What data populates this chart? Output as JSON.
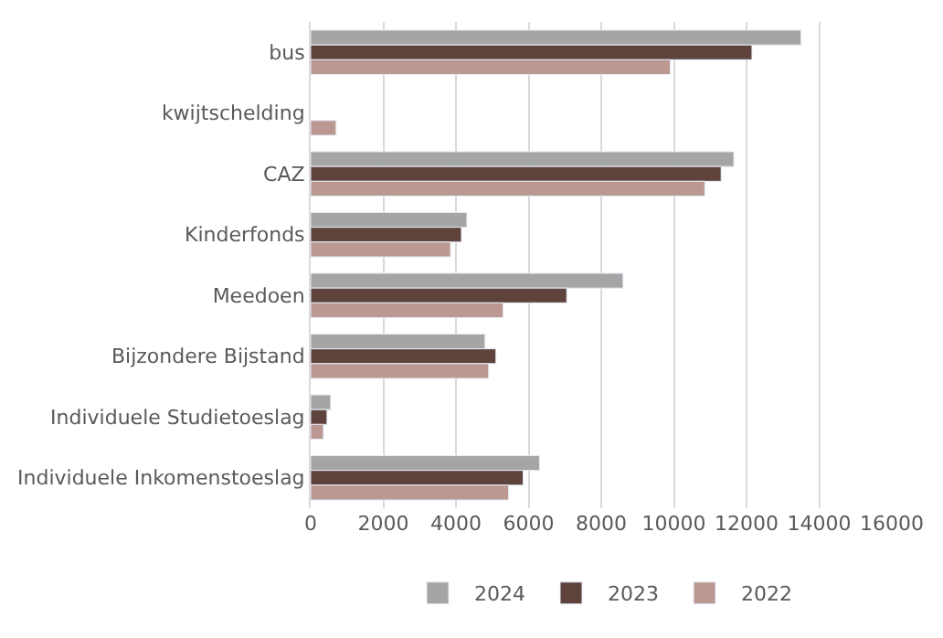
{
  "chart_data": {
    "type": "bar",
    "orientation": "horizontal",
    "categories": [
      "bus",
      "kwijtschelding",
      "CAZ",
      "Kinderfonds",
      "Meedoen",
      "Bijzondere Bijstand",
      "Individuele Studietoeslag",
      "Individuele Inkomenstoeslag"
    ],
    "series": [
      {
        "name": "2024",
        "color": "#a5a5a5",
        "values": [
          13500,
          null,
          11650,
          4300,
          8600,
          4800,
          550,
          6300
        ]
      },
      {
        "name": "2023",
        "color": "#5e433d",
        "values": [
          12150,
          null,
          11300,
          4150,
          7050,
          5100,
          450,
          5850
        ]
      },
      {
        "name": "2022",
        "color": "#bc9892",
        "values": [
          9900,
          700,
          10850,
          3850,
          5300,
          4900,
          350,
          5450
        ]
      }
    ],
    "xlim": [
      0,
      16000
    ],
    "xticks": [
      0,
      2000,
      4000,
      6000,
      8000,
      10000,
      12000,
      14000,
      16000
    ],
    "grid": "x",
    "legend": "bottom"
  }
}
